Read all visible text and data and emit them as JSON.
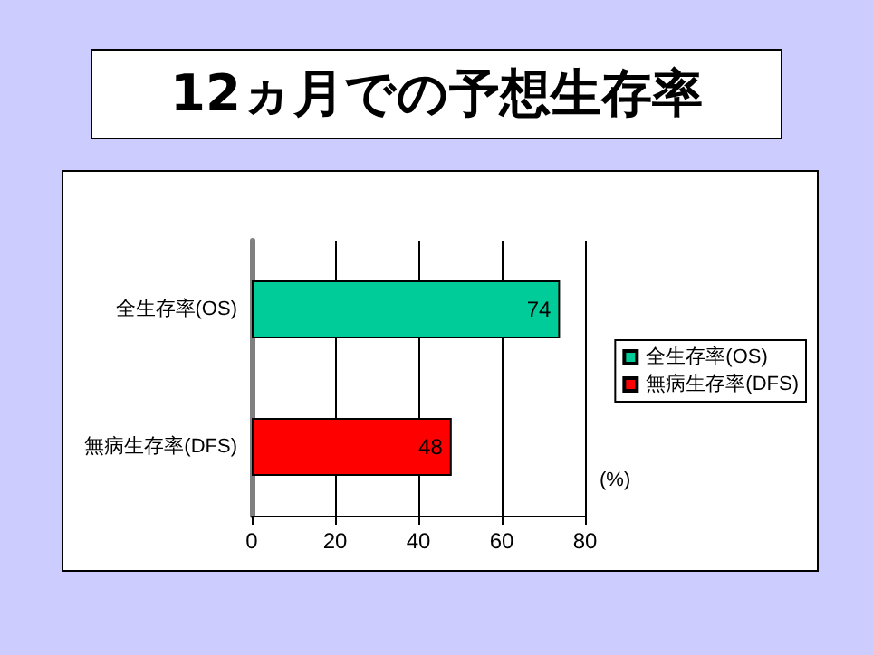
{
  "chart_data": {
    "type": "bar",
    "orientation": "horizontal",
    "stacked": true,
    "title": "12ヵ月での予想生存率",
    "xlabel": "(%)",
    "categories": [
      "全生存率(OS)",
      "無病生存率(DFS)"
    ],
    "series": [
      {
        "name": "全生存率(OS)",
        "color": "#00cc99",
        "values": [
          74,
          null
        ]
      },
      {
        "name": "無病生存率(DFS)",
        "color": "#ff0000",
        "values": [
          null,
          48
        ]
      }
    ],
    "xlim": [
      0,
      80
    ],
    "xticks": [
      0,
      20,
      40,
      60,
      80
    ],
    "grid": "x",
    "legend": "right",
    "data_labels": true
  }
}
